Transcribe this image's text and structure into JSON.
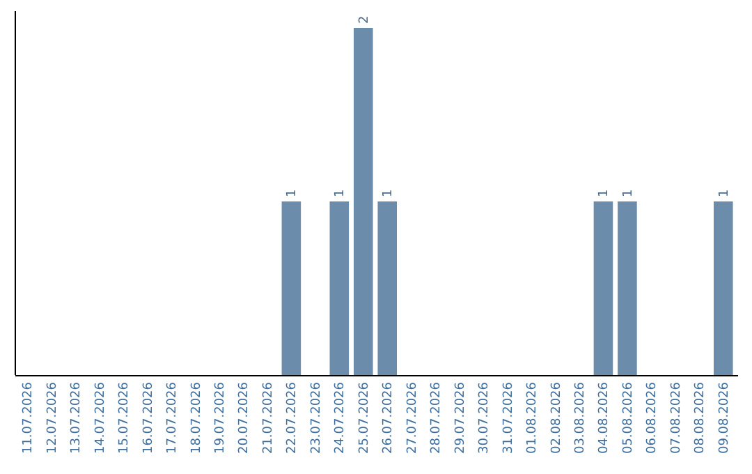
{
  "chart_data": {
    "type": "bar",
    "categories": [
      "11.07.2026",
      "12.07.2026",
      "13.07.2026",
      "14.07.2026",
      "15.07.2026",
      "16.07.2026",
      "17.07.2026",
      "18.07.2026",
      "19.07.2026",
      "20.07.2026",
      "21.07.2026",
      "22.07.2026",
      "23.07.2026",
      "24.07.2026",
      "25.07.2026",
      "26.07.2026",
      "27.07.2026",
      "28.07.2026",
      "29.07.2026",
      "30.07.2026",
      "31.07.2026",
      "01.08.2026",
      "02.08.2026",
      "03.08.2026",
      "04.08.2026",
      "05.08.2026",
      "06.08.2026",
      "07.08.2026",
      "08.08.2026",
      "09.08.2026"
    ],
    "values": [
      0,
      0,
      0,
      0,
      0,
      0,
      0,
      0,
      0,
      0,
      0,
      1,
      0,
      1,
      2,
      1,
      0,
      0,
      0,
      0,
      0,
      0,
      0,
      0,
      1,
      1,
      0,
      0,
      0,
      1
    ],
    "value_labels": [
      null,
      null,
      null,
      null,
      null,
      null,
      null,
      null,
      null,
      null,
      null,
      "1",
      null,
      "1",
      "2",
      "1",
      null,
      null,
      null,
      null,
      null,
      null,
      null,
      null,
      "1",
      "1",
      null,
      null,
      null,
      "1"
    ],
    "color": "#6b8cab"
  }
}
